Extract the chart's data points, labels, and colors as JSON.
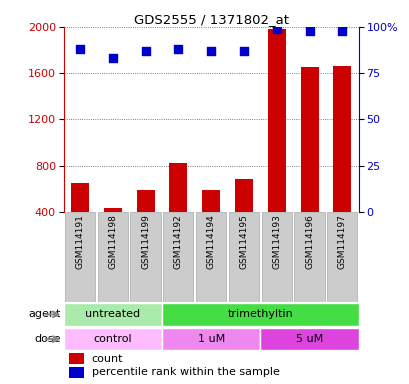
{
  "title": "GDS2555 / 1371802_at",
  "samples": [
    "GSM114191",
    "GSM114198",
    "GSM114199",
    "GSM114192",
    "GSM114194",
    "GSM114195",
    "GSM114193",
    "GSM114196",
    "GSM114197"
  ],
  "counts": [
    650,
    430,
    590,
    820,
    590,
    680,
    1980,
    1650,
    1660
  ],
  "percentile_ranks": [
    88,
    83,
    87,
    88,
    87,
    87,
    99,
    98,
    98
  ],
  "ylim_left": [
    400,
    2000
  ],
  "ylim_right": [
    0,
    100
  ],
  "yticks_left": [
    400,
    800,
    1200,
    1600,
    2000
  ],
  "yticks_right": [
    0,
    25,
    50,
    75,
    100
  ],
  "ytick_labels_right": [
    "0",
    "25",
    "50",
    "75",
    "100%"
  ],
  "bar_color": "#cc0000",
  "scatter_color": "#0000cc",
  "agent_groups": [
    {
      "label": "untreated",
      "start": 0,
      "end": 3,
      "color": "#aaeaaa"
    },
    {
      "label": "trimethyltin",
      "start": 3,
      "end": 9,
      "color": "#44dd44"
    }
  ],
  "dose_groups": [
    {
      "label": "control",
      "start": 0,
      "end": 3,
      "color": "#ffbbff"
    },
    {
      "label": "1 uM",
      "start": 3,
      "end": 6,
      "color": "#ee88ee"
    },
    {
      "label": "5 uM",
      "start": 6,
      "end": 9,
      "color": "#dd44dd"
    }
  ],
  "xlabel_agent": "agent",
  "xlabel_dose": "dose",
  "legend_count_color": "#cc0000",
  "legend_pct_color": "#0000cc",
  "background_color": "#ffffff",
  "grid_color": "#555555",
  "sample_box_color": "#cccccc",
  "sample_box_edge": "#aaaaaa"
}
